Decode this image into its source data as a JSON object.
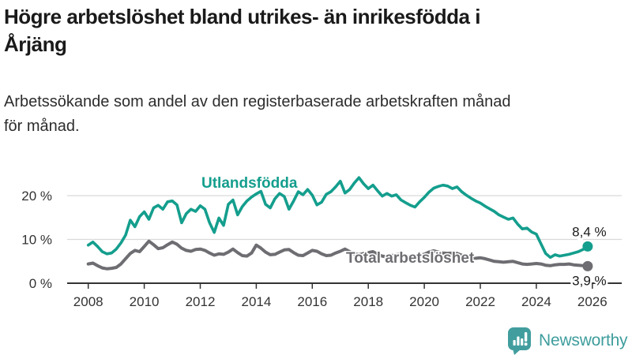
{
  "header": {
    "title": "Högre arbetslöshet bland utrikes- än inrikesfödda i\nÅrjäng",
    "subtitle": "Arbetssökande som andel av den registerbaserade arbetskraften månad\nför månad."
  },
  "chart_data": {
    "type": "line",
    "title": "Högre arbetslöshet bland utrikes- än inrikesfödda i Årjäng",
    "subtitle": "Arbetssökande som andel av den registerbaserade arbetskraften månad för månad.",
    "unit": "%",
    "grid": "horizontal",
    "x_start_year": 2008,
    "x_step_years": 0.166667,
    "x_tick_values": [
      2008,
      2010,
      2012,
      2014,
      2016,
      2018,
      2020,
      2022,
      2024,
      2026
    ],
    "x_tick_labels": [
      "2008",
      "2010",
      "2012",
      "2014",
      "2016",
      "2018",
      "2020",
      "2022",
      "2024",
      "2026"
    ],
    "y_tick_values": [
      0,
      10,
      20
    ],
    "y_tick_labels": [
      "0 %",
      "10 %",
      "20 %"
    ],
    "ylim": [
      0,
      25
    ],
    "series": [
      {
        "name": "Utlandsfödda",
        "color": "#149e8d",
        "end_label": "8,4 %",
        "end_value": 8.4,
        "values": [
          8.7,
          9.4,
          8.4,
          7.2,
          6.7,
          6.9,
          7.8,
          9.2,
          11.0,
          14.4,
          12.9,
          15.2,
          16.3,
          14.6,
          17.2,
          17.8,
          16.9,
          18.6,
          18.8,
          17.9,
          13.8,
          15.9,
          16.9,
          16.4,
          17.7,
          16.9,
          13.8,
          11.6,
          14.9,
          13.2,
          18.0,
          19.0,
          15.6,
          17.5,
          18.8,
          19.7,
          20.4,
          21.0,
          18.0,
          17.2,
          19.3,
          20.5,
          19.8,
          16.9,
          18.8,
          20.9,
          20.2,
          21.4,
          20.1,
          17.9,
          18.5,
          20.3,
          20.9,
          22.0,
          23.3,
          20.6,
          21.4,
          22.9,
          24.1,
          22.7,
          21.6,
          22.4,
          21.1,
          19.9,
          20.5,
          19.9,
          20.2,
          19.0,
          18.4,
          17.8,
          17.4,
          18.6,
          19.6,
          20.8,
          21.7,
          22.1,
          22.4,
          22.2,
          21.6,
          22.0,
          20.9,
          20.1,
          19.4,
          18.8,
          18.3,
          17.6,
          17.0,
          16.4,
          15.6,
          15.1,
          14.6,
          14.9,
          13.5,
          12.4,
          12.6,
          11.7,
          11.2,
          9.0,
          6.8,
          5.9,
          6.5,
          6.2,
          6.4,
          6.6,
          6.9,
          7.2,
          7.7,
          8.4
        ]
      },
      {
        "name": "Total arbetslöshet",
        "color": "#6d6d72",
        "end_label": "3,9 %",
        "end_value": 3.9,
        "values": [
          4.4,
          4.6,
          4.0,
          3.5,
          3.3,
          3.4,
          3.6,
          4.4,
          5.6,
          6.8,
          7.5,
          7.2,
          8.4,
          9.6,
          8.8,
          7.9,
          8.1,
          8.8,
          9.4,
          8.9,
          8.0,
          7.5,
          7.3,
          7.7,
          7.8,
          7.5,
          6.9,
          6.4,
          6.7,
          6.6,
          7.1,
          7.8,
          7.0,
          6.3,
          6.2,
          6.9,
          8.7,
          8.0,
          7.1,
          6.5,
          6.6,
          7.1,
          7.6,
          7.7,
          7.0,
          6.4,
          6.3,
          6.9,
          7.5,
          7.3,
          6.7,
          6.3,
          6.4,
          6.9,
          7.3,
          7.8,
          7.2,
          6.7,
          6.5,
          6.8,
          7.0,
          7.2,
          6.6,
          6.2,
          6.0,
          6.3,
          6.5,
          6.6,
          6.2,
          5.9,
          6.0,
          6.4,
          6.6,
          7.1,
          7.4,
          7.1,
          6.9,
          6.8,
          6.9,
          6.8,
          6.4,
          6.0,
          5.8,
          5.7,
          5.8,
          5.6,
          5.3,
          5.0,
          4.9,
          4.8,
          4.9,
          5.0,
          4.7,
          4.4,
          4.3,
          4.4,
          4.5,
          4.4,
          4.1,
          4.0,
          4.2,
          4.3,
          4.3,
          4.4,
          4.2,
          4.1,
          4.0,
          3.9
        ]
      }
    ]
  },
  "footer": {
    "brand": "Newsworthy",
    "logo_icon": "newsworthy-chart-speech-bubble-icon",
    "brand_color": "#3f9d9d",
    "icon_color": "#429e9e"
  },
  "colors": {
    "background": "#ffffff",
    "gridline": "#d9d9d9",
    "axis": "#333333",
    "title_text": "#1a1a1a",
    "subtitle_text": "#2d2d2d"
  }
}
